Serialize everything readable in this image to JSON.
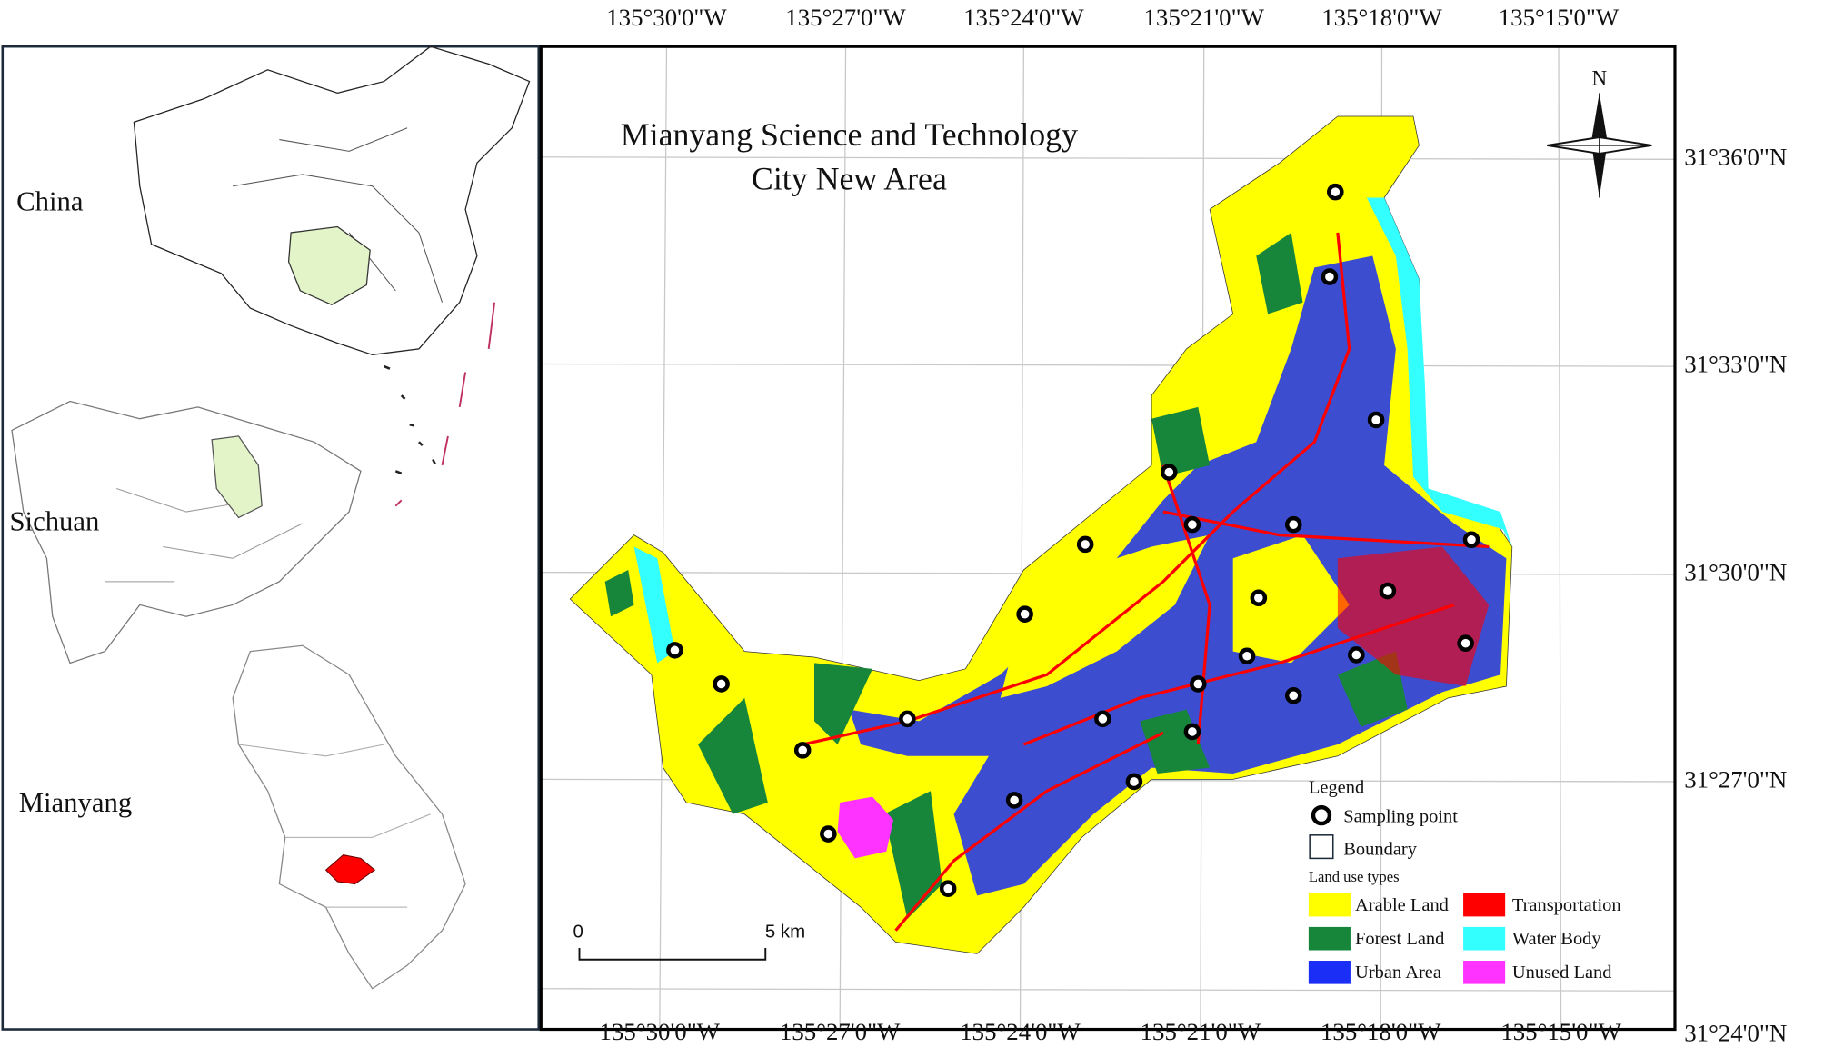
{
  "title": [
    "Mianyang Science and Technology",
    "City New Area"
  ],
  "insets": [
    "China",
    "Sichuan",
    "Mianyang"
  ],
  "top_labels": [
    "135°30'0\"W",
    "135°27'0\"W",
    "135°24'0\"W",
    "135°21'0\"W",
    "135°18'0\"W",
    "135°15'0\"W"
  ],
  "bottom_labels": [
    "135°30'0\"W",
    "135°27'0\"W",
    "135°24'0\"W",
    "135°21'0\"W",
    "135°18'0\"W",
    "135°15'0\"W"
  ],
  "right_labels": [
    "31°36'0\"N",
    "31°33'0\"N",
    "31°30'0\"N",
    "31°27'0\"N",
    "31°24'0\"N"
  ],
  "north": "N",
  "scale_bar": [
    "0",
    "5 km"
  ],
  "legend": {
    "title": "Legend",
    "sampling_point": "Sampling point",
    "boundary": "Boundary",
    "subtitle": "Land use types",
    "classes": [
      {
        "name": "Arable Land",
        "color": "#ffff00"
      },
      {
        "name": "Transportation",
        "color": "#ff0000"
      },
      {
        "name": "Forest Land",
        "color": "#17863a"
      },
      {
        "name": "Water Body",
        "color": "#33ffff"
      },
      {
        "name": "Urban Area",
        "color": "#1a2ef5"
      },
      {
        "name": "Unused Land",
        "color": "#ff33ff"
      }
    ]
  }
}
